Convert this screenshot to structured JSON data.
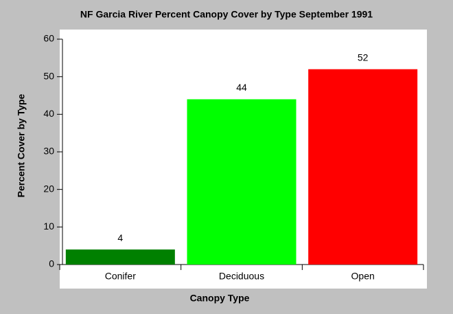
{
  "chart_data": {
    "type": "bar",
    "title": "NF Garcia River Percent Canopy Cover by Type September 1991",
    "x_label": "Canopy Type",
    "y_label": "Percent Cover by Type",
    "categories": [
      "Conifer",
      "Deciduous",
      "Open"
    ],
    "values": [
      4,
      44,
      52
    ],
    "colors": [
      "#008000",
      "#00ff00",
      "#ff0000"
    ],
    "ylim": [
      0,
      60
    ],
    "yticks": [
      0,
      10,
      20,
      30,
      40,
      50,
      60
    ],
    "data_labels": true
  }
}
